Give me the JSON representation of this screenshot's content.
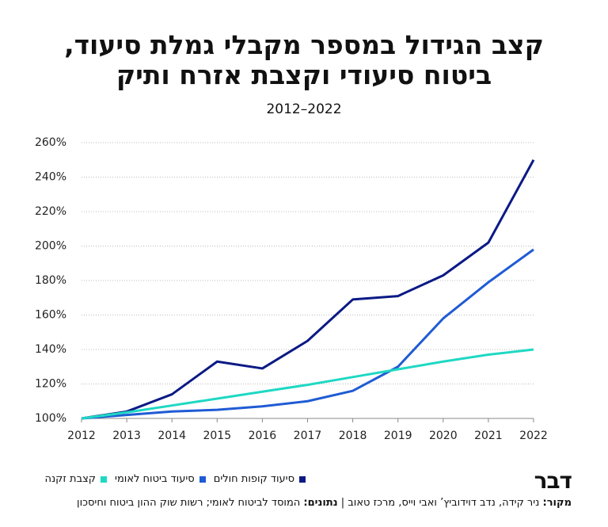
{
  "chart_data": {
    "type": "line",
    "title_lines": [
      "קצב הגידול במספר מקבלי גמלת סיעוד,",
      "ביטוח סיעודי וקצבת אזרח ותיק"
    ],
    "subtitle": "2012–2022",
    "x": [
      2012,
      2013,
      2014,
      2015,
      2016,
      2017,
      2018,
      2019,
      2020,
      2021,
      2022
    ],
    "xlim": [
      2012,
      2022
    ],
    "xticks": [
      2012,
      2013,
      2014,
      2015,
      2016,
      2017,
      2018,
      2019,
      2020,
      2021,
      2022
    ],
    "ylim": [
      100,
      260
    ],
    "yticks": [
      {
        "value": 100,
        "label": "100%"
      },
      {
        "value": 120,
        "label": "120%"
      },
      {
        "value": 140,
        "label": "140%"
      },
      {
        "value": 160,
        "label": "160%"
      },
      {
        "value": 180,
        "label": "180%"
      },
      {
        "value": 200,
        "label": "200%"
      },
      {
        "value": 220,
        "label": "220%"
      },
      {
        "value": 240,
        "label": "240%"
      },
      {
        "value": 260,
        "label": "260%"
      }
    ],
    "grid": true,
    "series": [
      {
        "name": "סיעוד קופות חולים",
        "color": "#0b1a85",
        "values": [
          100,
          104,
          114,
          133,
          129,
          145,
          169,
          171,
          183,
          202,
          250
        ]
      },
      {
        "name": "סיעוד ביטוח לאומי",
        "color": "#1f5bd4",
        "values": [
          100,
          102,
          104,
          105,
          107,
          110,
          116,
          130,
          158,
          179,
          198
        ]
      },
      {
        "name": "קצבת זקנה",
        "color": "#1fd8c4",
        "values": [
          100,
          103.5,
          107.5,
          111.5,
          115.5,
          119.5,
          124,
          128.5,
          133,
          137,
          140
        ]
      }
    ]
  },
  "branding": {
    "logo": "דבר"
  },
  "footer": {
    "source_label": "מקור:",
    "source": "ניר קידה, נדב דוידוביץ’ ואבי וייס, מרכז טאוב |",
    "data_label": "נתונים:",
    "data": "המוסד לביטוח לאומי; רשות שוק ההון ביטוח וחיסכון"
  }
}
